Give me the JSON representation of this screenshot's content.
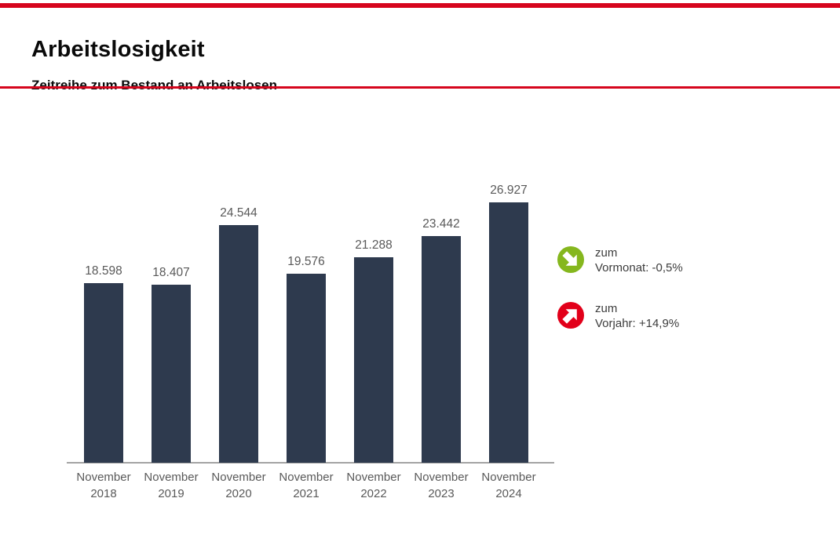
{
  "header": {
    "title": "Arbeitslosigkeit",
    "subtitle": "Zeitreihe zum Bestand an Arbeitslosen"
  },
  "chart_data": {
    "type": "bar",
    "title": "Zeitreihe zum Bestand an Arbeitslosen",
    "categories": [
      "November 2018",
      "November 2019",
      "November 2020",
      "November 2021",
      "November 2022",
      "November 2023",
      "November 2024"
    ],
    "values": [
      18598,
      18407,
      24544,
      19576,
      21288,
      23442,
      26927
    ],
    "value_labels": [
      "18.598",
      "18.407",
      "24.544",
      "19.576",
      "21.288",
      "23.442",
      "26.927"
    ],
    "xlabel": "",
    "ylabel": "",
    "ylim": [
      0,
      28000
    ],
    "grid": false,
    "bar_color": "#2e3a4e",
    "value_label_color": "#595959",
    "axis_color": "#a3a3a3",
    "legend_position": "right"
  },
  "indicators": [
    {
      "line1": "zum",
      "line2": "Vormonat: -0,5%",
      "direction": "down-right",
      "color": "#85b71e"
    },
    {
      "line1": "zum",
      "line2": "Vorjahr: +14,9%",
      "direction": "up-right",
      "color": "#e2001a"
    }
  ],
  "colors": {
    "accent_red": "#d6051d"
  }
}
